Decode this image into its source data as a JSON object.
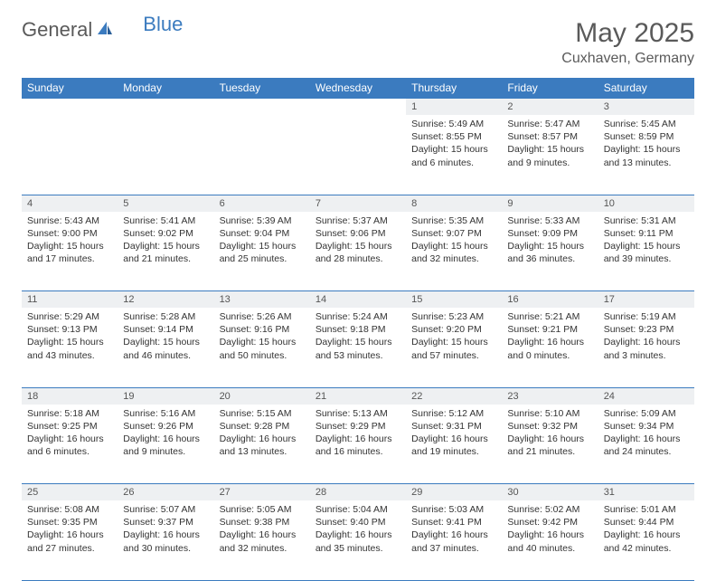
{
  "brand": {
    "part1": "General",
    "part2": "Blue"
  },
  "title": "May 2025",
  "location": "Cuxhaven, Germany",
  "colors": {
    "accent": "#3b7bbf",
    "header_text": "#ffffff",
    "daynum_bg": "#eef0f2",
    "text": "#333333",
    "muted": "#5a5a5a"
  },
  "weekdays": [
    "Sunday",
    "Monday",
    "Tuesday",
    "Wednesday",
    "Thursday",
    "Friday",
    "Saturday"
  ],
  "weeks": [
    {
      "nums": [
        "",
        "",
        "",
        "",
        "1",
        "2",
        "3"
      ],
      "cells": [
        null,
        null,
        null,
        null,
        {
          "sr": "5:49 AM",
          "ss": "8:55 PM",
          "dl": "15 hours and 6 minutes."
        },
        {
          "sr": "5:47 AM",
          "ss": "8:57 PM",
          "dl": "15 hours and 9 minutes."
        },
        {
          "sr": "5:45 AM",
          "ss": "8:59 PM",
          "dl": "15 hours and 13 minutes."
        }
      ]
    },
    {
      "nums": [
        "4",
        "5",
        "6",
        "7",
        "8",
        "9",
        "10"
      ],
      "cells": [
        {
          "sr": "5:43 AM",
          "ss": "9:00 PM",
          "dl": "15 hours and 17 minutes."
        },
        {
          "sr": "5:41 AM",
          "ss": "9:02 PM",
          "dl": "15 hours and 21 minutes."
        },
        {
          "sr": "5:39 AM",
          "ss": "9:04 PM",
          "dl": "15 hours and 25 minutes."
        },
        {
          "sr": "5:37 AM",
          "ss": "9:06 PM",
          "dl": "15 hours and 28 minutes."
        },
        {
          "sr": "5:35 AM",
          "ss": "9:07 PM",
          "dl": "15 hours and 32 minutes."
        },
        {
          "sr": "5:33 AM",
          "ss": "9:09 PM",
          "dl": "15 hours and 36 minutes."
        },
        {
          "sr": "5:31 AM",
          "ss": "9:11 PM",
          "dl": "15 hours and 39 minutes."
        }
      ]
    },
    {
      "nums": [
        "11",
        "12",
        "13",
        "14",
        "15",
        "16",
        "17"
      ],
      "cells": [
        {
          "sr": "5:29 AM",
          "ss": "9:13 PM",
          "dl": "15 hours and 43 minutes."
        },
        {
          "sr": "5:28 AM",
          "ss": "9:14 PM",
          "dl": "15 hours and 46 minutes."
        },
        {
          "sr": "5:26 AM",
          "ss": "9:16 PM",
          "dl": "15 hours and 50 minutes."
        },
        {
          "sr": "5:24 AM",
          "ss": "9:18 PM",
          "dl": "15 hours and 53 minutes."
        },
        {
          "sr": "5:23 AM",
          "ss": "9:20 PM",
          "dl": "15 hours and 57 minutes."
        },
        {
          "sr": "5:21 AM",
          "ss": "9:21 PM",
          "dl": "16 hours and 0 minutes."
        },
        {
          "sr": "5:19 AM",
          "ss": "9:23 PM",
          "dl": "16 hours and 3 minutes."
        }
      ]
    },
    {
      "nums": [
        "18",
        "19",
        "20",
        "21",
        "22",
        "23",
        "24"
      ],
      "cells": [
        {
          "sr": "5:18 AM",
          "ss": "9:25 PM",
          "dl": "16 hours and 6 minutes."
        },
        {
          "sr": "5:16 AM",
          "ss": "9:26 PM",
          "dl": "16 hours and 9 minutes."
        },
        {
          "sr": "5:15 AM",
          "ss": "9:28 PM",
          "dl": "16 hours and 13 minutes."
        },
        {
          "sr": "5:13 AM",
          "ss": "9:29 PM",
          "dl": "16 hours and 16 minutes."
        },
        {
          "sr": "5:12 AM",
          "ss": "9:31 PM",
          "dl": "16 hours and 19 minutes."
        },
        {
          "sr": "5:10 AM",
          "ss": "9:32 PM",
          "dl": "16 hours and 21 minutes."
        },
        {
          "sr": "5:09 AM",
          "ss": "9:34 PM",
          "dl": "16 hours and 24 minutes."
        }
      ]
    },
    {
      "nums": [
        "25",
        "26",
        "27",
        "28",
        "29",
        "30",
        "31"
      ],
      "cells": [
        {
          "sr": "5:08 AM",
          "ss": "9:35 PM",
          "dl": "16 hours and 27 minutes."
        },
        {
          "sr": "5:07 AM",
          "ss": "9:37 PM",
          "dl": "16 hours and 30 minutes."
        },
        {
          "sr": "5:05 AM",
          "ss": "9:38 PM",
          "dl": "16 hours and 32 minutes."
        },
        {
          "sr": "5:04 AM",
          "ss": "9:40 PM",
          "dl": "16 hours and 35 minutes."
        },
        {
          "sr": "5:03 AM",
          "ss": "9:41 PM",
          "dl": "16 hours and 37 minutes."
        },
        {
          "sr": "5:02 AM",
          "ss": "9:42 PM",
          "dl": "16 hours and 40 minutes."
        },
        {
          "sr": "5:01 AM",
          "ss": "9:44 PM",
          "dl": "16 hours and 42 minutes."
        }
      ]
    }
  ],
  "labels": {
    "sunrise": "Sunrise:",
    "sunset": "Sunset:",
    "daylight": "Daylight:"
  }
}
